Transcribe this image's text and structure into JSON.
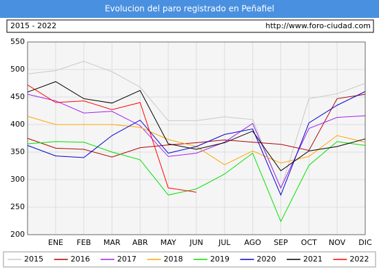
{
  "chart_data": {
    "type": "line",
    "title": "Evolucion del paro registrado en Peñafiel",
    "subtitle": "2015 - 2022",
    "source": "http://www.foro-ciudad.com",
    "categories": [
      null,
      "ENE",
      "FEB",
      "MAR",
      "ABR",
      "MAY",
      "JUN",
      "JUL",
      "AGO",
      "SEP",
      "OCT",
      "NOV",
      "DIC"
    ],
    "ylim": [
      200,
      550
    ],
    "yticks": [
      200,
      250,
      300,
      350,
      400,
      450,
      500,
      550
    ],
    "grid": true,
    "series": [
      {
        "name": "2015",
        "color": "#c8c8c8",
        "values": [
          492,
          498,
          515,
          496,
          468,
          407,
          407,
          414,
          409,
          283,
          447,
          456,
          475
        ]
      },
      {
        "name": "2016",
        "color": "#b00000",
        "values": [
          375,
          357,
          355,
          341,
          358,
          363,
          367,
          372,
          368,
          364,
          353,
          447,
          455
        ]
      },
      {
        "name": "2017",
        "color": "#a020f0",
        "values": [
          455,
          443,
          421,
          424,
          398,
          342,
          348,
          368,
          402,
          285,
          393,
          413,
          416
        ]
      },
      {
        "name": "2018",
        "color": "#ffa500",
        "values": [
          415,
          400,
          400,
          400,
          395,
          373,
          360,
          327,
          352,
          330,
          342,
          380,
          368
        ]
      },
      {
        "name": "2019",
        "color": "#00e000",
        "values": [
          365,
          369,
          368,
          350,
          336,
          272,
          283,
          310,
          348,
          224,
          326,
          369,
          362
        ]
      },
      {
        "name": "2020",
        "color": "#0000d0",
        "values": [
          362,
          343,
          340,
          380,
          408,
          348,
          360,
          382,
          392,
          272,
          403,
          435,
          460
        ]
      },
      {
        "name": "2021",
        "color": "#000000",
        "values": [
          459,
          478,
          447,
          439,
          462,
          365,
          355,
          367,
          388,
          316,
          352,
          360,
          374
        ]
      },
      {
        "name": "2022",
        "color": "#ff0000",
        "values": [
          472,
          440,
          443,
          427,
          440,
          285,
          277,
          null,
          null,
          null,
          null,
          null,
          null
        ]
      }
    ]
  }
}
